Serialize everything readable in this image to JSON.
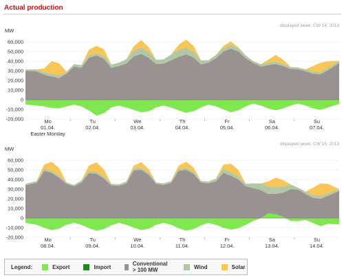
{
  "page": {
    "title": "Actual production"
  },
  "legend": {
    "label": "Legend:",
    "items": [
      {
        "key": "export",
        "name": "Export",
        "color": "#7ee84e"
      },
      {
        "key": "import",
        "name": "Import",
        "color": "#1a8c1a"
      },
      {
        "key": "conventional",
        "name": "Conventional > 100 MW",
        "color": "#9a9290"
      },
      {
        "key": "wind",
        "name": "Wind",
        "color": "#b2c8a4"
      },
      {
        "key": "solar",
        "name": "Solar",
        "color": "#f8c557"
      }
    ]
  },
  "chart_data": [
    {
      "type": "area",
      "week_label": "displayed week: CW 14; 2013",
      "ylabel": "MW",
      "ylim": [
        -20000,
        60000
      ],
      "yticks": [
        60000,
        50000,
        40000,
        30000,
        20000,
        10000,
        0,
        -10000,
        -20000
      ],
      "ytick_labels": [
        "60,000",
        "50,000",
        "40,000",
        "30,000",
        "20,000",
        "10,000",
        "0",
        "-10,000",
        "-20,000"
      ],
      "days": [
        {
          "day": "Mo",
          "date": "01.04.",
          "note": "Easter Monday",
          "conventional": [
            30000,
            29500,
            26000,
            24000,
            22500,
            27000
          ],
          "wind": [
            1500,
            2000,
            2500,
            3000,
            2500,
            2000
          ],
          "solar": [
            0,
            0,
            4000,
            13000,
            13000,
            0
          ],
          "export": [
            -5000,
            -6000,
            -7000,
            -8500,
            -9000,
            -7000
          ]
        },
        {
          "day": "Tu",
          "date": "02.04.",
          "conventional": [
            34500,
            33000,
            43500,
            46000,
            42500,
            33000
          ],
          "wind": [
            2500,
            3000,
            2500,
            2000,
            3000,
            3500
          ],
          "solar": [
            0,
            0,
            6000,
            8000,
            7000,
            0
          ],
          "export": [
            -5000,
            -7000,
            -11000,
            -16500,
            -14000,
            -8000
          ]
        },
        {
          "day": "We",
          "date": "03.04.",
          "conventional": [
            35000,
            37500,
            45000,
            47500,
            43500,
            37000
          ],
          "wind": [
            3500,
            4500,
            6000,
            7000,
            6000,
            4500
          ],
          "solar": [
            0,
            0,
            4500,
            7500,
            5000,
            0
          ],
          "export": [
            -6000,
            -8000,
            -10500,
            -13000,
            -12000,
            -8000
          ]
        },
        {
          "day": "Th",
          "date": "04.04.",
          "conventional": [
            37500,
            41000,
            44500,
            47000,
            44000,
            36500
          ],
          "wind": [
            4500,
            6000,
            7000,
            7000,
            6000,
            4500
          ],
          "solar": [
            0,
            0,
            5500,
            8500,
            6000,
            0
          ],
          "export": [
            -6000,
            -8000,
            -11000,
            -13500,
            -12000,
            -8000
          ]
        },
        {
          "day": "Fr",
          "date": "05.04.",
          "conventional": [
            38500,
            43000,
            50000,
            53000,
            50000,
            43000
          ],
          "wind": [
            2500,
            3500,
            3500,
            4000,
            3500,
            3000
          ],
          "solar": [
            0,
            0,
            2500,
            3500,
            1000,
            0
          ],
          "export": [
            -5000,
            -7000,
            -10000,
            -13000,
            -11000,
            -7000
          ]
        },
        {
          "day": "Sa",
          "date": "06.04.",
          "conventional": [
            38000,
            34500,
            36000,
            37000,
            35000,
            32000
          ],
          "wind": [
            2000,
            2500,
            2500,
            2500,
            2000,
            2000
          ],
          "solar": [
            0,
            0,
            3000,
            7000,
            4500,
            0
          ],
          "export": [
            -4000,
            -6000,
            -9000,
            -11000,
            -9000,
            -6000
          ]
        },
        {
          "day": "Su",
          "date": "07.04.",
          "conventional": [
            31500,
            29500,
            27000,
            26500,
            30500,
            38000
          ],
          "wind": [
            2000,
            2000,
            2000,
            2000,
            2500,
            2500
          ],
          "solar": [
            0,
            0,
            6000,
            10000,
            7000,
            0
          ],
          "export": [
            -4000,
            -6000,
            -9000,
            -10500,
            -8000,
            -4500
          ]
        }
      ]
    },
    {
      "type": "area",
      "week_label": "displayed week: CW 15; 2013",
      "ylabel": "MW",
      "ylim": [
        -20000,
        60000
      ],
      "yticks": [
        60000,
        50000,
        40000,
        30000,
        20000,
        10000,
        0,
        -10000,
        -20000
      ],
      "ytick_labels": [
        "60,000",
        "50,000",
        "40,000",
        "30,000",
        "20,000",
        "10,000",
        "0",
        "-10,000",
        "-20,000"
      ],
      "days": [
        {
          "day": "Mo",
          "date": "08.04.",
          "conventional": [
            34000,
            36500,
            49000,
            47000,
            42000,
            35500
          ],
          "wind": [
            1500,
            2000,
            2000,
            2000,
            2000,
            1500
          ],
          "solar": [
            0,
            0,
            4500,
            9500,
            8000,
            0
          ],
          "export": [
            -5000,
            -7000,
            -10000,
            -12500,
            -11000,
            -7000
          ]
        },
        {
          "day": "Tu",
          "date": "09.04.",
          "conventional": [
            33000,
            37000,
            46500,
            46000,
            41000,
            34000
          ],
          "wind": [
            1500,
            2000,
            2000,
            2000,
            2000,
            1500
          ],
          "solar": [
            0,
            0,
            6000,
            10000,
            7500,
            0
          ],
          "export": [
            -5000,
            -7000,
            -10500,
            -13000,
            -11500,
            -7500
          ]
        },
        {
          "day": "We",
          "date": "10.04.",
          "conventional": [
            33500,
            36000,
            49500,
            50000,
            45000,
            35500
          ],
          "wind": [
            1500,
            2000,
            2000,
            2000,
            2000,
            1500
          ],
          "solar": [
            0,
            0,
            3000,
            6000,
            4000,
            0
          ],
          "export": [
            -5000,
            -7000,
            -10000,
            -12500,
            -11000,
            -7000
          ]
        },
        {
          "day": "Th",
          "date": "11.04.",
          "conventional": [
            34500,
            36500,
            49000,
            50000,
            46000,
            37000
          ],
          "wind": [
            1500,
            2000,
            2000,
            2000,
            2000,
            1500
          ],
          "solar": [
            0,
            0,
            3500,
            6500,
            4500,
            0
          ],
          "export": [
            -5000,
            -7000,
            -10500,
            -13000,
            -11500,
            -7500
          ]
        },
        {
          "day": "Fr",
          "date": "12.04.",
          "conventional": [
            36000,
            38000,
            47000,
            44000,
            40000,
            33000
          ],
          "wind": [
            2000,
            3000,
            4000,
            3500,
            3000,
            2500
          ],
          "solar": [
            0,
            0,
            4500,
            9000,
            7000,
            0
          ],
          "export": [
            -5000,
            -7000,
            -10000,
            -12000,
            -10500,
            -7000
          ]
        },
        {
          "day": "Sa",
          "date": "13.04.",
          "conventional": [
            31000,
            29000,
            25000,
            25000,
            26500,
            30000
          ],
          "wind": [
            5000,
            7000,
            8000,
            7000,
            6000,
            5000
          ],
          "solar": [
            0,
            0,
            5000,
            10000,
            7000,
            0
          ],
          "export": [
            -3000,
            0,
            5000,
            4000,
            1500,
            -3000
          ]
        },
        {
          "day": "Su",
          "date": "14.04.",
          "conventional": [
            29500,
            25000,
            21000,
            20000,
            23000,
            28000
          ],
          "wind": [
            2000,
            2500,
            3000,
            3000,
            2500,
            2000
          ],
          "solar": [
            0,
            0,
            7500,
            13000,
            10000,
            0
          ],
          "export": [
            -3000,
            -2000,
            -5000,
            -8500,
            -6000,
            -6500
          ]
        }
      ]
    }
  ]
}
